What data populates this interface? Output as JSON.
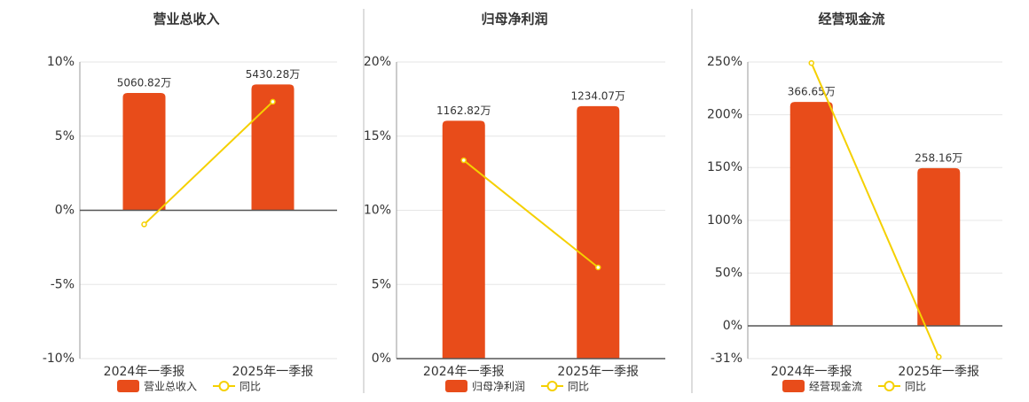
{
  "chart_data": [
    {
      "type": "combo",
      "title": "营业总收入",
      "categories": [
        "2024年一季报",
        "2025年一季报"
      ],
      "ylim": [
        -10,
        10
      ],
      "yticks": [
        {
          "value": -10,
          "label": "-10%"
        },
        {
          "value": -5,
          "label": "-5%"
        },
        {
          "value": 0,
          "label": "0%"
        },
        {
          "value": 5,
          "label": "5%"
        },
        {
          "value": 10,
          "label": "10%"
        }
      ],
      "y2lim": [
        -6400,
        6400
      ],
      "grid": true,
      "series": [
        {
          "name": "营业总收入",
          "type": "bar",
          "axis": "y2",
          "color": "#e84c1a",
          "values": [
            5060.82,
            5430.28
          ],
          "value_labels": [
            "5060.82万",
            "5430.28万"
          ]
        },
        {
          "name": "同比",
          "type": "line",
          "color": "#f5d000",
          "values": [
            -0.95,
            7.32
          ]
        }
      ]
    },
    {
      "type": "combo",
      "title": "归母净利润",
      "categories": [
        "2024年一季报",
        "2025年一季报"
      ],
      "ylim": [
        0,
        20
      ],
      "yticks": [
        {
          "value": 0,
          "label": "0%"
        },
        {
          "value": 5,
          "label": "5%"
        },
        {
          "value": 10,
          "label": "10%"
        },
        {
          "value": 15,
          "label": "15%"
        },
        {
          "value": 20,
          "label": "20%"
        }
      ],
      "y2lim": [
        0,
        1450
      ],
      "grid": true,
      "series": [
        {
          "name": "归母净利润",
          "type": "bar",
          "axis": "y2",
          "color": "#e84c1a",
          "values": [
            1162.82,
            1234.07
          ],
          "value_labels": [
            "1162.82万",
            "1234.07万"
          ]
        },
        {
          "name": "同比",
          "type": "line",
          "color": "#f5d000",
          "values": [
            13.37,
            6.15
          ]
        }
      ]
    },
    {
      "type": "combo",
      "title": "经营现金流",
      "categories": [
        "2024年一季报",
        "2025年一季报"
      ],
      "ylim": [
        -31,
        250
      ],
      "yticks": [
        {
          "value": -31,
          "label": "-31%"
        },
        {
          "value": 0,
          "label": "0%"
        },
        {
          "value": 50,
          "label": "50%"
        },
        {
          "value": 100,
          "label": "100%"
        },
        {
          "value": 150,
          "label": "150%"
        },
        {
          "value": 200,
          "label": "200%"
        },
        {
          "value": 250,
          "label": "250%"
        }
      ],
      "y2lim": [
        -53.7,
        432
      ],
      "grid": true,
      "series": [
        {
          "name": "经营现金流",
          "type": "bar",
          "axis": "y2",
          "color": "#e84c1a",
          "values": [
            366.65,
            258.16
          ],
          "value_labels": [
            "366.65万",
            "258.16万"
          ]
        },
        {
          "name": "同比",
          "type": "line",
          "color": "#f5d000",
          "values": [
            249,
            -29.4
          ]
        }
      ]
    }
  ]
}
